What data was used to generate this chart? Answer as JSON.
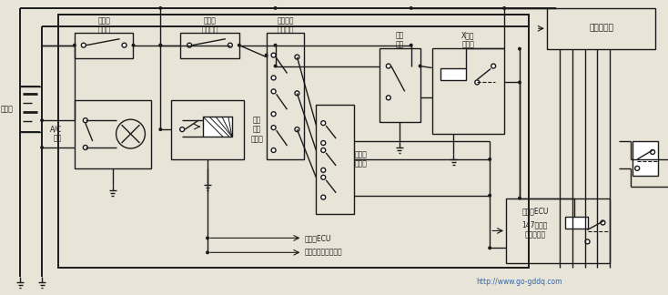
{
  "bg_color": "#e8e4d8",
  "line_color": "#1a1a1a",
  "lw": 1.0,
  "lw2": 1.4,
  "fig_width": 7.34,
  "fig_height": 3.24,
  "dpi": 100,
  "labels": {
    "battery": "蓄电池",
    "outdoor_temp": "室外温\n度开关",
    "evap_switch": "蕊发器\n温控开关",
    "ac_water_temp": "空调水温\n控制开关",
    "ignition": "点火\n开关",
    "x_relay": "X电源\n继电器",
    "fan_ctrl": "风扇控制器",
    "ac_switch": "A/C\n开关",
    "inner_outer_em": "内外\n循环\n电磁阀",
    "combo_pressure": "组合压\n力开关",
    "ecu_label": "发动机ECU",
    "ac_cutoff": "147号空调\n切断继电器",
    "ac_em_power": "空调继电圈工作电源",
    "engine_ecu_arrow": "发动机ECU",
    "engine_ecu_box": "发动机ECU",
    "website": "http://www.go-gddq.com"
  }
}
